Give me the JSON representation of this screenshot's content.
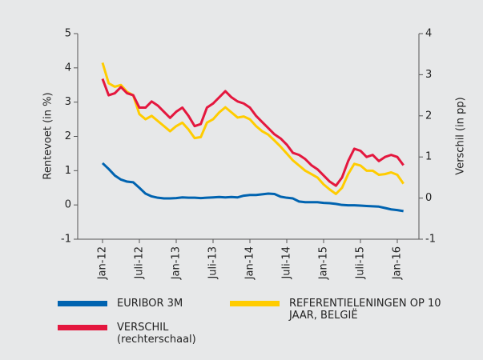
{
  "chart_data": {
    "type": "line",
    "ylabel": "Rentevoet (in %)",
    "y2label": "Verschil (in pp)",
    "categories": [
      "Jan-12",
      null,
      null,
      null,
      null,
      null,
      "Juli-12",
      null,
      null,
      null,
      null,
      null,
      "Jan-13",
      null,
      null,
      null,
      null,
      null,
      "Juli-13",
      null,
      null,
      null,
      null,
      null,
      "Jan-14",
      null,
      null,
      null,
      null,
      null,
      "Juli-14",
      null,
      null,
      null,
      null,
      null,
      "Jan-15",
      null,
      null,
      null,
      null,
      null,
      "Juli-15",
      null,
      null,
      null,
      null,
      null,
      "Jan-16",
      null
    ],
    "series": [
      {
        "name": "EURIBOR 3M",
        "color": "#0063b0",
        "axis": "y",
        "values": [
          1.22,
          1.05,
          0.86,
          0.74,
          0.68,
          0.66,
          0.5,
          0.33,
          0.25,
          0.21,
          0.19,
          0.19,
          0.2,
          0.22,
          0.21,
          0.21,
          0.2,
          0.21,
          0.22,
          0.23,
          0.22,
          0.23,
          0.22,
          0.27,
          0.29,
          0.29,
          0.31,
          0.33,
          0.32,
          0.24,
          0.21,
          0.19,
          0.1,
          0.08,
          0.08,
          0.08,
          0.06,
          0.05,
          0.03,
          0.0,
          -0.01,
          -0.01,
          -0.02,
          -0.03,
          -0.04,
          -0.05,
          -0.09,
          -0.13,
          -0.15,
          -0.18
        ]
      },
      {
        "name": "REFERENTIELENINGEN OP 10 JAAR, BELGIË",
        "color": "#ffcc00",
        "axis": "y",
        "values": [
          4.15,
          3.55,
          3.45,
          3.5,
          3.3,
          3.2,
          2.65,
          2.5,
          2.6,
          2.45,
          2.3,
          2.15,
          2.3,
          2.4,
          2.2,
          1.95,
          1.98,
          2.4,
          2.5,
          2.7,
          2.85,
          2.7,
          2.55,
          2.58,
          2.5,
          2.3,
          2.15,
          2.05,
          1.88,
          1.7,
          1.5,
          1.3,
          1.15,
          1.0,
          0.9,
          0.8,
          0.6,
          0.45,
          0.32,
          0.5,
          0.9,
          1.2,
          1.15,
          1.0,
          1.0,
          0.88,
          0.9,
          0.95,
          0.88,
          0.62
        ]
      },
      {
        "name": "VERSCHIL (rechterschaal)",
        "color": "#e4173e",
        "axis": "y2",
        "values": [
          2.9,
          2.5,
          2.55,
          2.7,
          2.55,
          2.5,
          2.2,
          2.2,
          2.35,
          2.25,
          2.1,
          1.95,
          2.1,
          2.2,
          2.0,
          1.75,
          1.8,
          2.2,
          2.3,
          2.45,
          2.6,
          2.45,
          2.35,
          2.3,
          2.2,
          2.0,
          1.85,
          1.7,
          1.55,
          1.45,
          1.3,
          1.1,
          1.05,
          0.95,
          0.8,
          0.7,
          0.55,
          0.4,
          0.3,
          0.5,
          0.9,
          1.2,
          1.15,
          1.0,
          1.05,
          0.9,
          1.0,
          1.05,
          1.0,
          0.8
        ]
      }
    ],
    "ylim": [
      -1,
      5
    ],
    "yticks": [
      -1,
      0,
      1,
      2,
      3,
      4,
      5
    ],
    "y2lim": [
      -1,
      4
    ],
    "y2ticks": [
      -1,
      0,
      1,
      2,
      3,
      4
    ],
    "legend_position": "bottom"
  }
}
